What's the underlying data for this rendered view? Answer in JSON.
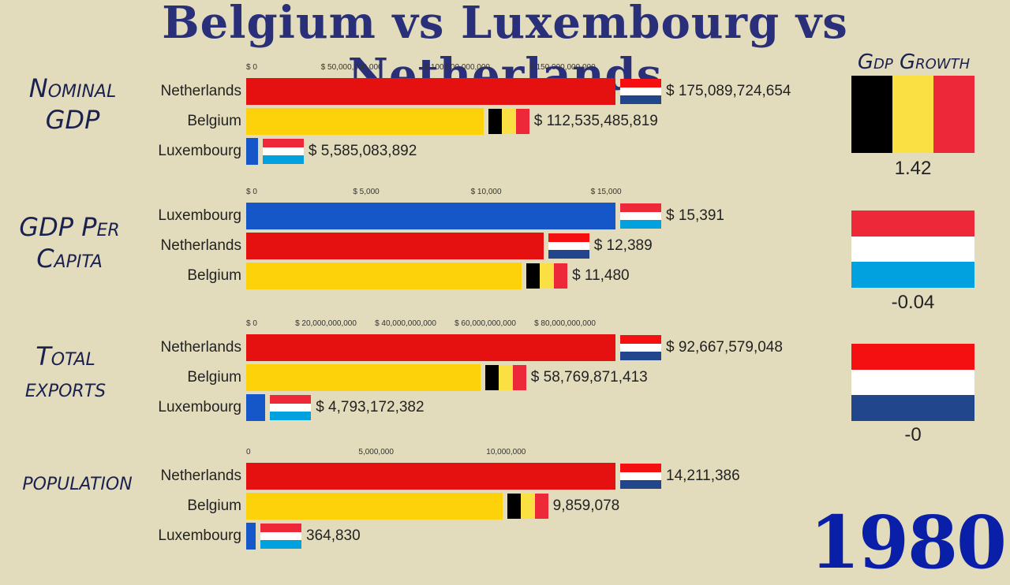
{
  "title": "Belgium vs Luxembourg vs Netherlands",
  "year": "1980",
  "colors": {
    "netherlands_bar": "#e51010",
    "belgium_bar": "#fdd20a",
    "luxembourg_bar": "#1556c9",
    "background": "#e3dcbc"
  },
  "growth": {
    "title": "Gdp Growth",
    "items": [
      {
        "country": "Belgium",
        "value": "1.42"
      },
      {
        "country": "Luxembourg",
        "value": "-0.04"
      },
      {
        "country": "Netherlands",
        "value": "-0"
      }
    ]
  },
  "chart_data": [
    {
      "type": "bar",
      "label": "Nominal GDP",
      "ticks": [
        "$ 0",
        "$ 50,000,000,000",
        "$ 100,000,000,000",
        "$ 150,000,000,000"
      ],
      "tick_values": [
        0,
        50000000000,
        100000000000,
        150000000000
      ],
      "xlim": [
        0,
        175089724654
      ],
      "rows": [
        {
          "country": "Netherlands",
          "value": 175089724654,
          "label": "$ 175,089,724,654"
        },
        {
          "country": "Belgium",
          "value": 112535485819,
          "label": "$ 112,535,485,819"
        },
        {
          "country": "Luxembourg",
          "value": 5585083892,
          "label": "$ 5,585,083,892"
        }
      ]
    },
    {
      "type": "bar",
      "label": "GDP Per Capita",
      "ticks": [
        "$ 0",
        "$ 5,000",
        "$ 10,000",
        "$ 15,000"
      ],
      "tick_values": [
        0,
        5000,
        10000,
        15000
      ],
      "xlim": [
        0,
        15391
      ],
      "rows": [
        {
          "country": "Luxembourg",
          "value": 15391,
          "label": "$ 15,391"
        },
        {
          "country": "Netherlands",
          "value": 12389,
          "label": "$ 12,389"
        },
        {
          "country": "Belgium",
          "value": 11480,
          "label": "$ 11,480"
        }
      ]
    },
    {
      "type": "bar",
      "label": "Total exports",
      "ticks": [
        "$ 0",
        "$ 20,000,000,000",
        "$ 40,000,000,000",
        "$ 60,000,000,000",
        "$ 80,000,000,000"
      ],
      "tick_values": [
        0,
        20000000000,
        40000000000,
        60000000000,
        80000000000
      ],
      "xlim": [
        0,
        92667579048
      ],
      "rows": [
        {
          "country": "Netherlands",
          "value": 92667579048,
          "label": "$ 92,667,579,048"
        },
        {
          "country": "Belgium",
          "value": 58769871413,
          "label": "$ 58,769,871,413"
        },
        {
          "country": "Luxembourg",
          "value": 4793172382,
          "label": "$ 4,793,172,382"
        }
      ]
    },
    {
      "type": "bar",
      "label": "population",
      "ticks": [
        "0",
        "5,000,000",
        "10,000,000"
      ],
      "tick_values": [
        0,
        5000000,
        10000000
      ],
      "xlim": [
        0,
        14211386
      ],
      "rows": [
        {
          "country": "Netherlands",
          "value": 14211386,
          "label": "14,211,386"
        },
        {
          "country": "Belgium",
          "value": 9859078,
          "label": "9,859,078"
        },
        {
          "country": "Luxembourg",
          "value": 364830,
          "label": "364,830"
        }
      ]
    }
  ]
}
